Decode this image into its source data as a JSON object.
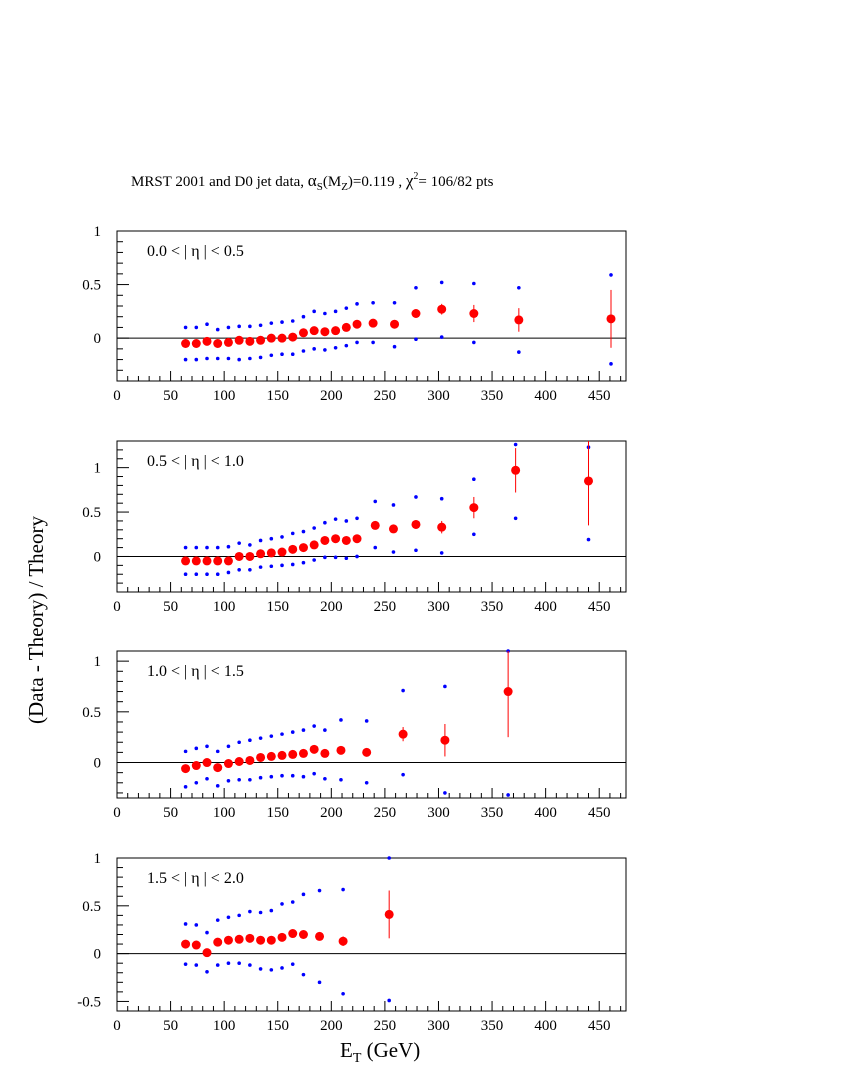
{
  "title": {
    "prefix": "MRST 2001 and D0 jet data, ",
    "alpha": "α",
    "alpha_sub": "S",
    "paren_open": "(M",
    "mz_sub": "Z",
    "alpha_value": ")=0.119 , ",
    "chi": "χ",
    "chi_sup": "2",
    "chi_value": "= 106/82 pts"
  },
  "ylabel": "(Data - Theory) / Theory",
  "xlabel": {
    "main": "E",
    "sub": "T",
    "unit": " (GeV)"
  },
  "colors": {
    "data": "#ff0000",
    "band": "#0000ff",
    "axis": "#000000"
  },
  "chart_data": [
    {
      "type": "scatter",
      "label": "0.0 < | η  | < 0.5",
      "xlim": [
        0,
        475
      ],
      "ylim": [
        -0.4,
        1.0
      ],
      "xticks": [
        0,
        50,
        100,
        150,
        200,
        250,
        300,
        350,
        400,
        450
      ],
      "yticks": [
        0,
        0.5,
        1
      ],
      "ytick_labels": [
        "0",
        "0.5",
        "1"
      ],
      "zero_line": true,
      "series": [
        {
          "x": [
            64,
            74,
            84,
            94,
            104,
            114,
            124,
            134,
            144,
            154,
            164,
            174,
            184,
            194,
            204,
            214,
            224,
            239,
            259,
            279,
            303,
            333,
            375,
            461
          ],
          "y": [
            -0.05,
            -0.05,
            -0.03,
            -0.05,
            -0.04,
            -0.02,
            -0.03,
            -0.02,
            0.0,
            0.0,
            0.01,
            0.05,
            0.07,
            0.06,
            0.07,
            0.1,
            0.13,
            0.14,
            0.13,
            0.23,
            0.27,
            0.23,
            0.17,
            0.18
          ],
          "err": [
            0.01,
            0.01,
            0.01,
            0.01,
            0.01,
            0.01,
            0.01,
            0.01,
            0.01,
            0.01,
            0.01,
            0.01,
            0.01,
            0.01,
            0.02,
            0.02,
            0.02,
            0.02,
            0.03,
            0.04,
            0.05,
            0.08,
            0.11,
            0.27
          ]
        }
      ],
      "band_upper": {
        "x": [
          64,
          74,
          84,
          94,
          104,
          114,
          124,
          134,
          144,
          154,
          164,
          174,
          184,
          194,
          204,
          214,
          224,
          239,
          259,
          279,
          303,
          333,
          375,
          461
        ],
        "y": [
          0.1,
          0.1,
          0.13,
          0.08,
          0.1,
          0.11,
          0.11,
          0.12,
          0.14,
          0.15,
          0.16,
          0.2,
          0.25,
          0.23,
          0.25,
          0.28,
          0.32,
          0.33,
          0.33,
          0.47,
          0.52,
          0.51,
          0.47,
          0.59
        ]
      },
      "band_lower": {
        "x": [
          64,
          74,
          84,
          94,
          104,
          114,
          124,
          134,
          144,
          154,
          164,
          174,
          184,
          194,
          204,
          214,
          224,
          239,
          259,
          279,
          303,
          333,
          375,
          461
        ],
        "y": [
          -0.2,
          -0.2,
          -0.19,
          -0.19,
          -0.19,
          -0.2,
          -0.19,
          -0.18,
          -0.16,
          -0.15,
          -0.15,
          -0.12,
          -0.1,
          -0.11,
          -0.09,
          -0.07,
          -0.04,
          -0.04,
          -0.08,
          -0.01,
          0.01,
          -0.04,
          -0.13,
          -0.24
        ]
      }
    },
    {
      "type": "scatter",
      "label": "0.5 < | η | < 1.0",
      "xlim": [
        0,
        475
      ],
      "ylim": [
        -0.4,
        1.3
      ],
      "xticks": [
        0,
        50,
        100,
        150,
        200,
        250,
        300,
        350,
        400,
        450
      ],
      "yticks": [
        0,
        0.5,
        1
      ],
      "ytick_labels": [
        "0",
        "0.5",
        "1"
      ],
      "zero_line": true,
      "series": [
        {
          "x": [
            64,
            74,
            84,
            94,
            104,
            114,
            124,
            134,
            144,
            154,
            164,
            174,
            184,
            194,
            204,
            214,
            224,
            241,
            258,
            279,
            303,
            333,
            372,
            440
          ],
          "y": [
            -0.05,
            -0.05,
            -0.05,
            -0.05,
            -0.05,
            0.0,
            0.0,
            0.03,
            0.04,
            0.05,
            0.08,
            0.1,
            0.13,
            0.18,
            0.2,
            0.18,
            0.2,
            0.35,
            0.31,
            0.36,
            0.33,
            0.55,
            0.97,
            0.85
          ],
          "err": [
            0.01,
            0.01,
            0.01,
            0.01,
            0.01,
            0.01,
            0.01,
            0.01,
            0.01,
            0.01,
            0.01,
            0.01,
            0.02,
            0.02,
            0.02,
            0.02,
            0.02,
            0.03,
            0.04,
            0.05,
            0.07,
            0.12,
            0.25,
            0.5
          ]
        }
      ],
      "band_upper": {
        "x": [
          64,
          74,
          84,
          94,
          104,
          114,
          124,
          134,
          144,
          154,
          164,
          174,
          184,
          194,
          204,
          214,
          224,
          241,
          258,
          279,
          303,
          333,
          372,
          440
        ],
        "y": [
          0.1,
          0.1,
          0.1,
          0.1,
          0.11,
          0.15,
          0.13,
          0.18,
          0.2,
          0.22,
          0.26,
          0.28,
          0.32,
          0.38,
          0.42,
          0.4,
          0.43,
          0.62,
          0.58,
          0.67,
          0.65,
          0.87,
          1.26,
          1.23
        ]
      },
      "band_lower": {
        "x": [
          64,
          74,
          84,
          94,
          104,
          114,
          124,
          134,
          144,
          154,
          164,
          174,
          184,
          194,
          204,
          214,
          224,
          241,
          258,
          279,
          303,
          333,
          372,
          440
        ],
        "y": [
          -0.2,
          -0.2,
          -0.2,
          -0.2,
          -0.18,
          -0.15,
          -0.15,
          -0.12,
          -0.11,
          -0.1,
          -0.09,
          -0.07,
          -0.04,
          -0.01,
          -0.01,
          -0.02,
          0.0,
          0.1,
          0.05,
          0.07,
          0.04,
          0.25,
          0.43,
          0.19
        ]
      }
    },
    {
      "type": "scatter",
      "label": "1.0 < | η | < 1.5",
      "xlim": [
        0,
        475
      ],
      "ylim": [
        -0.35,
        1.1
      ],
      "xticks": [
        0,
        50,
        100,
        150,
        200,
        250,
        300,
        350,
        400,
        450
      ],
      "yticks": [
        0,
        0.5,
        1
      ],
      "ytick_labels": [
        "0",
        "0.5",
        "1"
      ],
      "zero_line": true,
      "series": [
        {
          "x": [
            64,
            74,
            84,
            94,
            104,
            114,
            124,
            134,
            144,
            154,
            164,
            174,
            184,
            194,
            209,
            233,
            267,
            306,
            365
          ],
          "y": [
            -0.06,
            -0.03,
            0.0,
            -0.05,
            -0.01,
            0.01,
            0.02,
            0.05,
            0.06,
            0.07,
            0.08,
            0.09,
            0.13,
            0.09,
            0.12,
            0.1,
            0.28,
            0.22,
            0.7
          ],
          "err": [
            0.01,
            0.01,
            0.01,
            0.01,
            0.01,
            0.01,
            0.01,
            0.01,
            0.01,
            0.01,
            0.01,
            0.02,
            0.02,
            0.02,
            0.03,
            0.04,
            0.07,
            0.16,
            0.45
          ]
        }
      ],
      "band_upper": {
        "x": [
          64,
          74,
          84,
          94,
          104,
          114,
          124,
          134,
          144,
          154,
          164,
          174,
          184,
          194,
          209,
          233,
          267,
          306,
          365
        ],
        "y": [
          0.11,
          0.14,
          0.16,
          0.11,
          0.16,
          0.2,
          0.22,
          0.24,
          0.26,
          0.28,
          0.3,
          0.32,
          0.36,
          0.32,
          0.42,
          0.41,
          0.71,
          0.75,
          1.1
        ]
      },
      "band_lower": {
        "x": [
          64,
          74,
          84,
          94,
          104,
          114,
          124,
          134,
          144,
          154,
          164,
          174,
          184,
          194,
          209,
          233,
          267,
          306,
          365
        ],
        "y": [
          -0.24,
          -0.2,
          -0.16,
          -0.23,
          -0.18,
          -0.17,
          -0.17,
          -0.15,
          -0.14,
          -0.13,
          -0.13,
          -0.14,
          -0.11,
          -0.16,
          -0.17,
          -0.2,
          -0.12,
          -0.3,
          -0.32
        ]
      }
    },
    {
      "type": "scatter",
      "label": "1.5 < | η | < 2.0",
      "xlim": [
        0,
        475
      ],
      "ylim": [
        -0.6,
        1.0
      ],
      "xticks": [
        0,
        50,
        100,
        150,
        200,
        250,
        300,
        350,
        400,
        450
      ],
      "yticks": [
        -0.5,
        0,
        0.5,
        1
      ],
      "ytick_labels": [
        "-0.5",
        "0",
        "0.5",
        "1"
      ],
      "zero_line": true,
      "series": [
        {
          "x": [
            64,
            74,
            84,
            94,
            104,
            114,
            124,
            134,
            144,
            154,
            164,
            174,
            189,
            211,
            254
          ],
          "y": [
            0.1,
            0.09,
            0.01,
            0.12,
            0.14,
            0.15,
            0.16,
            0.14,
            0.14,
            0.17,
            0.21,
            0.2,
            0.18,
            0.13,
            0.41
          ],
          "err": [
            0.01,
            0.01,
            0.01,
            0.01,
            0.01,
            0.01,
            0.01,
            0.01,
            0.02,
            0.02,
            0.02,
            0.03,
            0.03,
            0.05,
            0.25
          ]
        }
      ],
      "band_upper": {
        "x": [
          64,
          74,
          84,
          94,
          104,
          114,
          124,
          134,
          144,
          154,
          164,
          174,
          189,
          211,
          254
        ],
        "y": [
          0.31,
          0.3,
          0.22,
          0.35,
          0.38,
          0.4,
          0.44,
          0.43,
          0.45,
          0.52,
          0.54,
          0.62,
          0.66,
          0.67,
          1.0
        ]
      },
      "band_lower": {
        "x": [
          64,
          74,
          84,
          94,
          104,
          114,
          124,
          134,
          144,
          154,
          164,
          174,
          189,
          211,
          254
        ],
        "y": [
          -0.11,
          -0.12,
          -0.19,
          -0.12,
          -0.1,
          -0.1,
          -0.12,
          -0.16,
          -0.17,
          -0.15,
          -0.11,
          -0.22,
          -0.3,
          -0.42,
          -0.49
        ]
      }
    }
  ]
}
